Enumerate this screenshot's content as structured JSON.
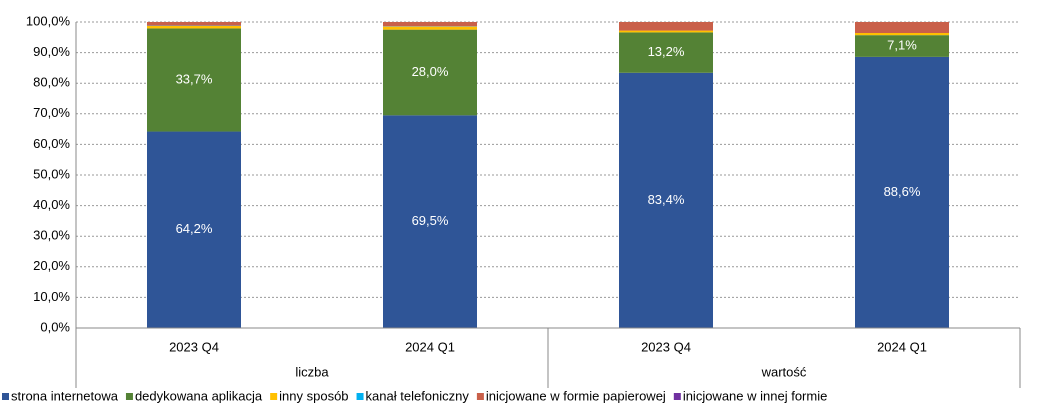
{
  "chart_data": {
    "type": "stacked_bar",
    "categories": [
      "2023 Q4",
      "2024 Q1",
      "2023 Q4",
      "2024 Q1"
    ],
    "groups": [
      "liczba",
      "wartość"
    ],
    "series": [
      {
        "name": "strona internetowa",
        "color": "#2f5597",
        "values": [
          64.2,
          69.5,
          83.4,
          88.6
        ],
        "value_labels": [
          "64,2%",
          "69,5%",
          "83,4%",
          "88,6%"
        ]
      },
      {
        "name": "dedykowana aplikacja",
        "color": "#548235",
        "values": [
          33.7,
          28.0,
          13.2,
          7.1
        ],
        "value_labels": [
          "33,7%",
          "28,0%",
          "13,2%",
          "7,1%"
        ]
      },
      {
        "name": "inny sposób",
        "color": "#ffc000",
        "values": [
          0.8,
          1.0,
          0.6,
          0.7
        ]
      },
      {
        "name": "kanał telefoniczny",
        "color": "#00b0f0",
        "values": [
          0.1,
          0.1,
          0.0,
          0.0
        ]
      },
      {
        "name": "inicjowane w formie papierowej",
        "color": "#c9604a",
        "values": [
          1.2,
          1.4,
          2.8,
          3.6
        ]
      },
      {
        "name": "inicjowane w innej formie",
        "color": "#7030a0",
        "values": [
          0.0,
          0.0,
          0.0,
          0.0
        ]
      }
    ],
    "ylim": [
      0,
      100
    ],
    "yticks": [
      {
        "value": 0,
        "label": "0,0%"
      },
      {
        "value": 10,
        "label": "10,0%"
      },
      {
        "value": 20,
        "label": "20,0%"
      },
      {
        "value": 30,
        "label": "30,0%"
      },
      {
        "value": 40,
        "label": "40,0%"
      },
      {
        "value": 50,
        "label": "50,0%"
      },
      {
        "value": 60,
        "label": "60,0%"
      },
      {
        "value": 70,
        "label": "70,0%"
      },
      {
        "value": 80,
        "label": "80,0%"
      },
      {
        "value": 90,
        "label": "90,0%"
      },
      {
        "value": 100,
        "label": "100,0%"
      }
    ],
    "grid": true,
    "legend": "bottom"
  }
}
